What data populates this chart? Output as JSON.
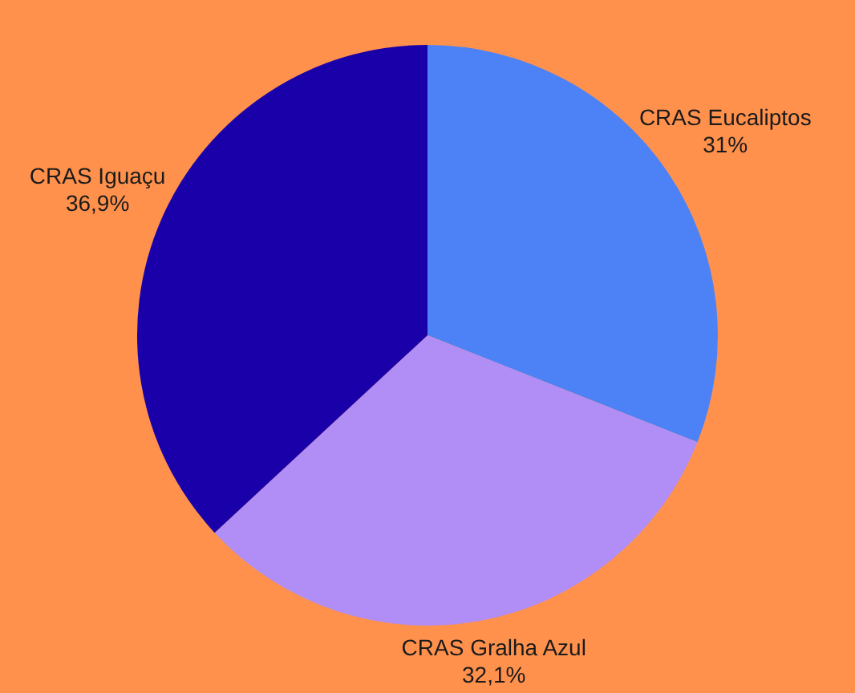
{
  "chart_data": {
    "type": "pie",
    "categories": [
      "CRAS Eucaliptos",
      "CRAS Gralha Azul",
      "CRAS Iguaçu"
    ],
    "values": [
      31,
      32.1,
      36.9
    ],
    "value_labels": [
      "31%",
      "32,1%",
      "36,9%"
    ],
    "colors": [
      "#4d82f7",
      "#b08ef5",
      "#1a00a8"
    ],
    "legend": false
  }
}
